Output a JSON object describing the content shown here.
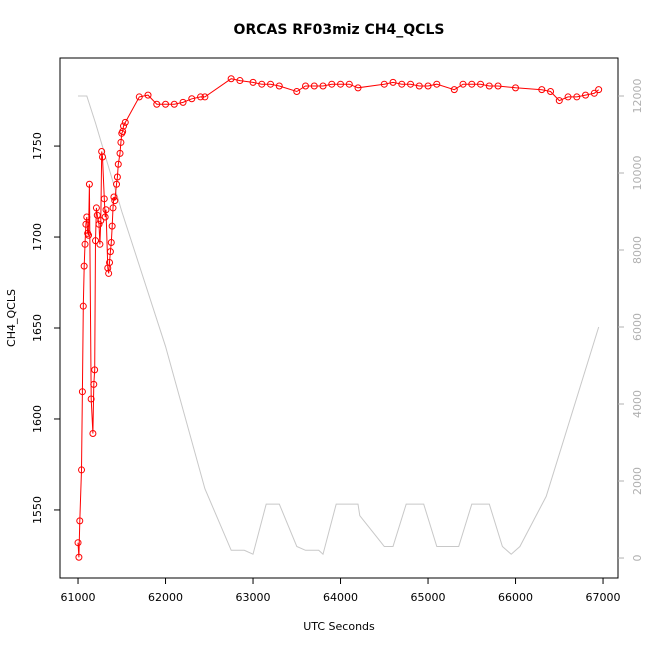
{
  "chart_data": {
    "type": "line",
    "title": "ORCAS RF03miz CH4_QCLS",
    "xlabel": "UTC Seconds",
    "ylabel": "CH4_QCLS",
    "xlim": [
      60794,
      67171
    ],
    "xticks": [
      61000,
      62000,
      63000,
      64000,
      65000,
      66000,
      67000
    ],
    "ylim": [
      1512.6,
      1798.4
    ],
    "yticks": [
      1550,
      1600,
      1650,
      1700,
      1750
    ],
    "y2lim": [
      -519,
      12987
    ],
    "y2ticks": [
      0,
      2000,
      4000,
      6000,
      8000,
      10000,
      12000
    ],
    "y2_color": "#b0b0b0",
    "series": [
      {
        "color": "#ff0000",
        "markers": true,
        "x": [
          61000,
          61010,
          61020,
          61040,
          61050,
          61060,
          61070,
          61080,
          61090,
          61100,
          61110,
          61120,
          61130,
          61150,
          61170,
          61180,
          61190,
          61200,
          61210,
          61220,
          61240,
          61250,
          61260,
          61270,
          61280,
          61300,
          61310,
          61320,
          61340,
          61350,
          61360,
          61370,
          61380,
          61390,
          61400,
          61410,
          61420,
          61440,
          61450,
          61460,
          61480,
          61490,
          61500,
          61510,
          61520,
          61540,
          61700,
          61800,
          61900,
          62000,
          62100,
          62200,
          62300,
          62400,
          62450,
          62750,
          62850,
          63000,
          63100,
          63200,
          63300,
          63500,
          63600,
          63700,
          63800,
          63900,
          64000,
          64100,
          64200,
          64500,
          64600,
          64700,
          64800,
          64900,
          65000,
          65100,
          65300,
          65400,
          65500,
          65600,
          65700,
          65800,
          66000,
          66300,
          66400,
          66500,
          66600,
          66700,
          66800,
          66900,
          66950
        ],
        "values": [
          1532,
          1524,
          1544,
          1572,
          1615,
          1662,
          1684,
          1696,
          1707,
          1711,
          1702,
          1701,
          1729,
          1611,
          1592,
          1619,
          1627,
          1698,
          1716,
          1712,
          1707,
          1696,
          1709,
          1747,
          1744,
          1721,
          1711,
          1715,
          1683,
          1680,
          1686,
          1692,
          1697,
          1706,
          1716,
          1722,
          1720,
          1729,
          1733,
          1740,
          1746,
          1752,
          1757,
          1758,
          1761,
          1763,
          1777,
          1778,
          1773,
          1773,
          1773,
          1774,
          1776,
          1777,
          1777,
          1787,
          1786,
          1785,
          1784,
          1784,
          1783,
          1780,
          1783,
          1783,
          1783,
          1784,
          1784,
          1784,
          1782,
          1784,
          1785,
          1784,
          1784,
          1783,
          1783,
          1784,
          1781,
          1784,
          1784,
          1784,
          1783,
          1783,
          1782,
          1781,
          1780,
          1775,
          1777,
          1777,
          1778,
          1779,
          1781
        ]
      },
      {
        "color": "#c8c8c8",
        "axis": "y2",
        "markers": false,
        "x": [
          61000,
          61100,
          61200,
          61500,
          62000,
          62450,
          62750,
          62900,
          63000,
          63150,
          63300,
          63500,
          63600,
          63750,
          63800,
          63950,
          64200,
          64220,
          64500,
          64600,
          64750,
          64950,
          65100,
          65350,
          65500,
          65700,
          65850,
          65950,
          66050,
          66350,
          66950
        ],
        "values": [
          12000,
          12000,
          11300,
          9000,
          5500,
          1800,
          200,
          200,
          100,
          1400,
          1400,
          300,
          200,
          200,
          100,
          1400,
          1400,
          1100,
          300,
          300,
          1400,
          1400,
          300,
          300,
          1400,
          1400,
          300,
          100,
          300,
          1600,
          6000
        ]
      }
    ]
  }
}
